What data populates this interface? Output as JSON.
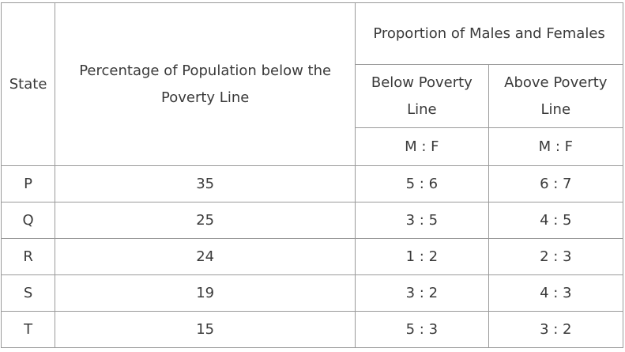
{
  "table": {
    "headers": {
      "state": "State",
      "percentage": "Percentage of Population below the Poverty Line",
      "proportion": "Proportion of Males and Females",
      "below": "Below Poverty Line",
      "above": "Above Poverty Line",
      "ratio_below": "M : F",
      "ratio_above": "M : F"
    },
    "rows": [
      {
        "state": "P",
        "percentage": "35",
        "below": "5 : 6",
        "above": "6 : 7"
      },
      {
        "state": "Q",
        "percentage": "25",
        "below": "3 : 5",
        "above": "4 : 5"
      },
      {
        "state": "R",
        "percentage": "24",
        "below": "1 : 2",
        "above": "2 : 3"
      },
      {
        "state": "S",
        "percentage": "19",
        "below": "3 : 2",
        "above": "4 : 3"
      },
      {
        "state": "T",
        "percentage": "15",
        "below": "5 : 3",
        "above": "3 : 2"
      }
    ]
  }
}
